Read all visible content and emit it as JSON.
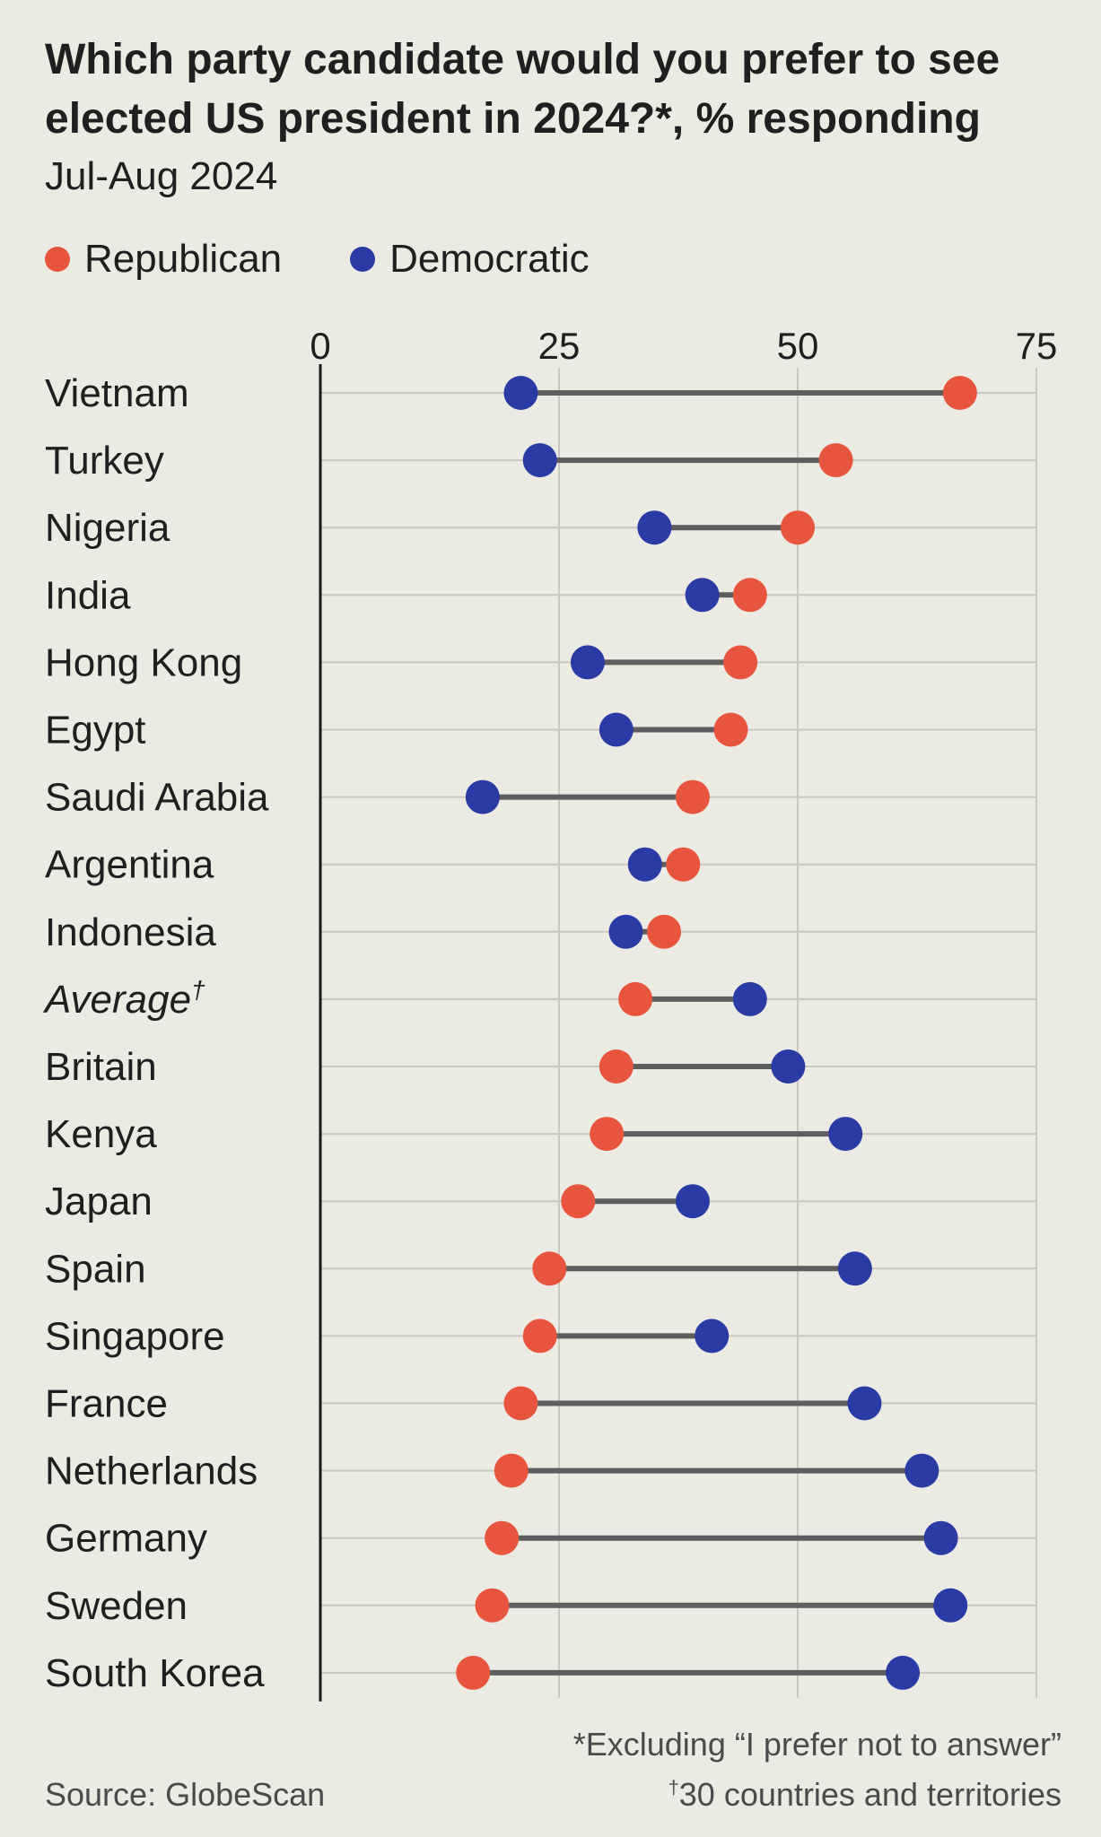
{
  "title": "Which party candidate would you prefer to see elected US president in 2024?*, % responding",
  "subtitle": "Jul-Aug 2024",
  "legend": [
    {
      "label": "Republican",
      "color": "#e8553e"
    },
    {
      "label": "Democratic",
      "color": "#2b3ba6"
    }
  ],
  "footnotes": {
    "star": "*Excluding “I prefer not to answer”",
    "dagger_mark": "†",
    "dagger": "30 countries and territories"
  },
  "source": "Source: GlobeScan",
  "colors": {
    "republican": "#e8553e",
    "democratic": "#2b3ba6",
    "connector": "#5e5e5e",
    "grid": "#c9c8c0",
    "axis": "#1a1a1a"
  },
  "chart_data": {
    "type": "dumbbell",
    "xlim": [
      0,
      75
    ],
    "xticks": [
      0,
      25,
      50,
      75
    ],
    "grid": true,
    "legend_position": "top-left",
    "categories": [
      "Vietnam",
      "Turkey",
      "Nigeria",
      "India",
      "Hong Kong",
      "Egypt",
      "Saudi Arabia",
      "Argentina",
      "Indonesia",
      "Average",
      "Britain",
      "Kenya",
      "Japan",
      "Spain",
      "Singapore",
      "France",
      "Netherlands",
      "Germany",
      "Sweden",
      "South Korea"
    ],
    "italic_categories": [
      "Average"
    ],
    "category_marks": {
      "Average": "†"
    },
    "series": [
      {
        "name": "Republican",
        "color": "#e8553e",
        "values": [
          67,
          54,
          50,
          45,
          44,
          43,
          39,
          38,
          36,
          33,
          31,
          30,
          27,
          24,
          23,
          21,
          20,
          19,
          18,
          16
        ]
      },
      {
        "name": "Democratic",
        "color": "#2b3ba6",
        "values": [
          21,
          23,
          35,
          40,
          28,
          31,
          17,
          34,
          32,
          45,
          49,
          55,
          39,
          56,
          41,
          57,
          63,
          65,
          66,
          61
        ]
      }
    ]
  }
}
